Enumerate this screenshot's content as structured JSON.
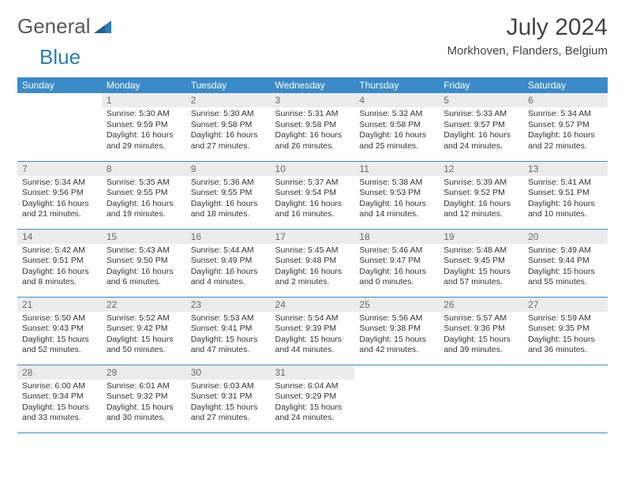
{
  "logo": {
    "word1": "General",
    "word2": "Blue"
  },
  "title": "July 2024",
  "location": "Morkhoven, Flanders, Belgium",
  "colors": {
    "header_bg": "#3b8bc9",
    "header_text": "#ffffff",
    "daynum_bg": "#ececec",
    "daynum_text": "#6a6a6a",
    "border": "#3b8bc9",
    "logo_gray": "#595959",
    "logo_blue": "#2a7db8"
  },
  "weekdays": [
    "Sunday",
    "Monday",
    "Tuesday",
    "Wednesday",
    "Thursday",
    "Friday",
    "Saturday"
  ],
  "weeks": [
    [
      null,
      {
        "n": "1",
        "sr": "5:30 AM",
        "ss": "9:59 PM",
        "dl": "16 hours and 29 minutes."
      },
      {
        "n": "2",
        "sr": "5:30 AM",
        "ss": "9:58 PM",
        "dl": "16 hours and 27 minutes."
      },
      {
        "n": "3",
        "sr": "5:31 AM",
        "ss": "9:58 PM",
        "dl": "16 hours and 26 minutes."
      },
      {
        "n": "4",
        "sr": "5:32 AM",
        "ss": "9:58 PM",
        "dl": "16 hours and 25 minutes."
      },
      {
        "n": "5",
        "sr": "5:33 AM",
        "ss": "9:57 PM",
        "dl": "16 hours and 24 minutes."
      },
      {
        "n": "6",
        "sr": "5:34 AM",
        "ss": "9:57 PM",
        "dl": "16 hours and 22 minutes."
      }
    ],
    [
      {
        "n": "7",
        "sr": "5:34 AM",
        "ss": "9:56 PM",
        "dl": "16 hours and 21 minutes."
      },
      {
        "n": "8",
        "sr": "5:35 AM",
        "ss": "9:55 PM",
        "dl": "16 hours and 19 minutes."
      },
      {
        "n": "9",
        "sr": "5:36 AM",
        "ss": "9:55 PM",
        "dl": "16 hours and 18 minutes."
      },
      {
        "n": "10",
        "sr": "5:37 AM",
        "ss": "9:54 PM",
        "dl": "16 hours and 16 minutes."
      },
      {
        "n": "11",
        "sr": "5:38 AM",
        "ss": "9:53 PM",
        "dl": "16 hours and 14 minutes."
      },
      {
        "n": "12",
        "sr": "5:39 AM",
        "ss": "9:52 PM",
        "dl": "16 hours and 12 minutes."
      },
      {
        "n": "13",
        "sr": "5:41 AM",
        "ss": "9:51 PM",
        "dl": "16 hours and 10 minutes."
      }
    ],
    [
      {
        "n": "14",
        "sr": "5:42 AM",
        "ss": "9:51 PM",
        "dl": "16 hours and 8 minutes."
      },
      {
        "n": "15",
        "sr": "5:43 AM",
        "ss": "9:50 PM",
        "dl": "16 hours and 6 minutes."
      },
      {
        "n": "16",
        "sr": "5:44 AM",
        "ss": "9:49 PM",
        "dl": "16 hours and 4 minutes."
      },
      {
        "n": "17",
        "sr": "5:45 AM",
        "ss": "9:48 PM",
        "dl": "16 hours and 2 minutes."
      },
      {
        "n": "18",
        "sr": "5:46 AM",
        "ss": "9:47 PM",
        "dl": "16 hours and 0 minutes."
      },
      {
        "n": "19",
        "sr": "5:48 AM",
        "ss": "9:45 PM",
        "dl": "15 hours and 57 minutes."
      },
      {
        "n": "20",
        "sr": "5:49 AM",
        "ss": "9:44 PM",
        "dl": "15 hours and 55 minutes."
      }
    ],
    [
      {
        "n": "21",
        "sr": "5:50 AM",
        "ss": "9:43 PM",
        "dl": "15 hours and 52 minutes."
      },
      {
        "n": "22",
        "sr": "5:52 AM",
        "ss": "9:42 PM",
        "dl": "15 hours and 50 minutes."
      },
      {
        "n": "23",
        "sr": "5:53 AM",
        "ss": "9:41 PM",
        "dl": "15 hours and 47 minutes."
      },
      {
        "n": "24",
        "sr": "5:54 AM",
        "ss": "9:39 PM",
        "dl": "15 hours and 44 minutes."
      },
      {
        "n": "25",
        "sr": "5:56 AM",
        "ss": "9:38 PM",
        "dl": "15 hours and 42 minutes."
      },
      {
        "n": "26",
        "sr": "5:57 AM",
        "ss": "9:36 PM",
        "dl": "15 hours and 39 minutes."
      },
      {
        "n": "27",
        "sr": "5:59 AM",
        "ss": "9:35 PM",
        "dl": "15 hours and 36 minutes."
      }
    ],
    [
      {
        "n": "28",
        "sr": "6:00 AM",
        "ss": "9:34 PM",
        "dl": "15 hours and 33 minutes."
      },
      {
        "n": "29",
        "sr": "6:01 AM",
        "ss": "9:32 PM",
        "dl": "15 hours and 30 minutes."
      },
      {
        "n": "30",
        "sr": "6:03 AM",
        "ss": "9:31 PM",
        "dl": "15 hours and 27 minutes."
      },
      {
        "n": "31",
        "sr": "6:04 AM",
        "ss": "9:29 PM",
        "dl": "15 hours and 24 minutes."
      },
      null,
      null,
      null
    ]
  ],
  "labels": {
    "sunrise": "Sunrise:",
    "sunset": "Sunset:",
    "daylight": "Daylight:"
  }
}
